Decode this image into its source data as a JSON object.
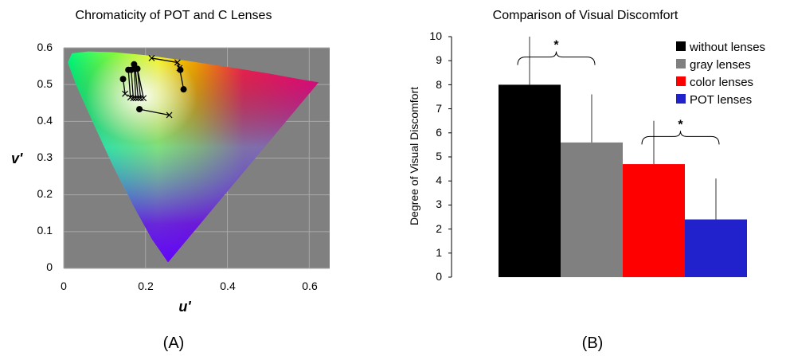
{
  "chart_data": [
    {
      "type": "scatter",
      "title": "Chromaticity of POT and C Lenses",
      "xlabel": "u'",
      "ylabel": "v'",
      "xlim": [
        0,
        0.65
      ],
      "ylim": [
        0,
        0.6
      ],
      "x_ticks": [
        "0",
        "0.2",
        "0.4",
        "0.6"
      ],
      "y_ticks": [
        "0",
        "0.1",
        "0.2",
        "0.3",
        "0.4",
        "0.5",
        "0.6"
      ],
      "grid": true,
      "background_color": "#808080",
      "panel_label": "(A)",
      "series": [
        {
          "marker": "x",
          "values": [
            {
              "x": 0.215,
              "y": 0.572
            },
            {
              "x": 0.278,
              "y": 0.56
            },
            {
              "x": 0.283,
              "y": 0.545
            },
            {
              "x": 0.15,
              "y": 0.475
            },
            {
              "x": 0.163,
              "y": 0.465
            },
            {
              "x": 0.17,
              "y": 0.463
            },
            {
              "x": 0.176,
              "y": 0.463
            },
            {
              "x": 0.182,
              "y": 0.463
            },
            {
              "x": 0.188,
              "y": 0.463
            },
            {
              "x": 0.195,
              "y": 0.463
            },
            {
              "x": 0.258,
              "y": 0.417
            }
          ]
        },
        {
          "marker": "dot",
          "values": [
            {
              "x": 0.285,
              "y": 0.54
            },
            {
              "x": 0.293,
              "y": 0.487
            },
            {
              "x": 0.145,
              "y": 0.515
            },
            {
              "x": 0.158,
              "y": 0.54
            },
            {
              "x": 0.165,
              "y": 0.54
            },
            {
              "x": 0.172,
              "y": 0.555
            },
            {
              "x": 0.175,
              "y": 0.543
            },
            {
              "x": 0.18,
              "y": 0.543
            },
            {
              "x": 0.185,
              "y": 0.433
            }
          ]
        }
      ],
      "connections": [
        [
          {
            "x": 0.215,
            "y": 0.572
          },
          {
            "x": 0.278,
            "y": 0.56
          }
        ],
        [
          {
            "x": 0.278,
            "y": 0.56
          },
          {
            "x": 0.285,
            "y": 0.54
          }
        ],
        [
          {
            "x": 0.283,
            "y": 0.545
          },
          {
            "x": 0.293,
            "y": 0.487
          }
        ],
        [
          {
            "x": 0.145,
            "y": 0.515
          },
          {
            "x": 0.15,
            "y": 0.475
          }
        ],
        [
          {
            "x": 0.158,
            "y": 0.54
          },
          {
            "x": 0.163,
            "y": 0.465
          }
        ],
        [
          {
            "x": 0.165,
            "y": 0.54
          },
          {
            "x": 0.17,
            "y": 0.463
          }
        ],
        [
          {
            "x": 0.172,
            "y": 0.555
          },
          {
            "x": 0.176,
            "y": 0.463
          }
        ],
        [
          {
            "x": 0.175,
            "y": 0.543
          },
          {
            "x": 0.182,
            "y": 0.463
          }
        ],
        [
          {
            "x": 0.18,
            "y": 0.543
          },
          {
            "x": 0.188,
            "y": 0.463
          }
        ],
        [
          {
            "x": 0.18,
            "y": 0.543
          },
          {
            "x": 0.195,
            "y": 0.463
          }
        ],
        [
          {
            "x": 0.185,
            "y": 0.433
          },
          {
            "x": 0.258,
            "y": 0.417
          }
        ]
      ]
    },
    {
      "type": "bar",
      "title": "Comparison of Visual Discomfort",
      "ylabel": "Degree of Visual Discomfort",
      "xlabel": "",
      "ylim": [
        0,
        10
      ],
      "y_ticks": [
        "0",
        "1",
        "2",
        "3",
        "4",
        "5",
        "6",
        "7",
        "8",
        "9",
        "10"
      ],
      "panel_label": "(B)",
      "legend_position": "top-right",
      "series": [
        {
          "name": "without lenses",
          "value": 8.0,
          "error": 2.0,
          "color": "#000000"
        },
        {
          "name": "gray lenses",
          "value": 5.6,
          "error": 2.0,
          "color": "#808080"
        },
        {
          "name": "color lenses",
          "value": 4.7,
          "error": 1.8,
          "color": "#ff0000"
        },
        {
          "name": "POT lenses",
          "value": 2.4,
          "error": 1.7,
          "color": "#2222cc"
        }
      ],
      "significance": [
        {
          "between": [
            "without lenses",
            "gray lenses"
          ],
          "label": "*"
        },
        {
          "between": [
            "color lenses",
            "POT lenses"
          ],
          "label": "*"
        }
      ]
    }
  ]
}
